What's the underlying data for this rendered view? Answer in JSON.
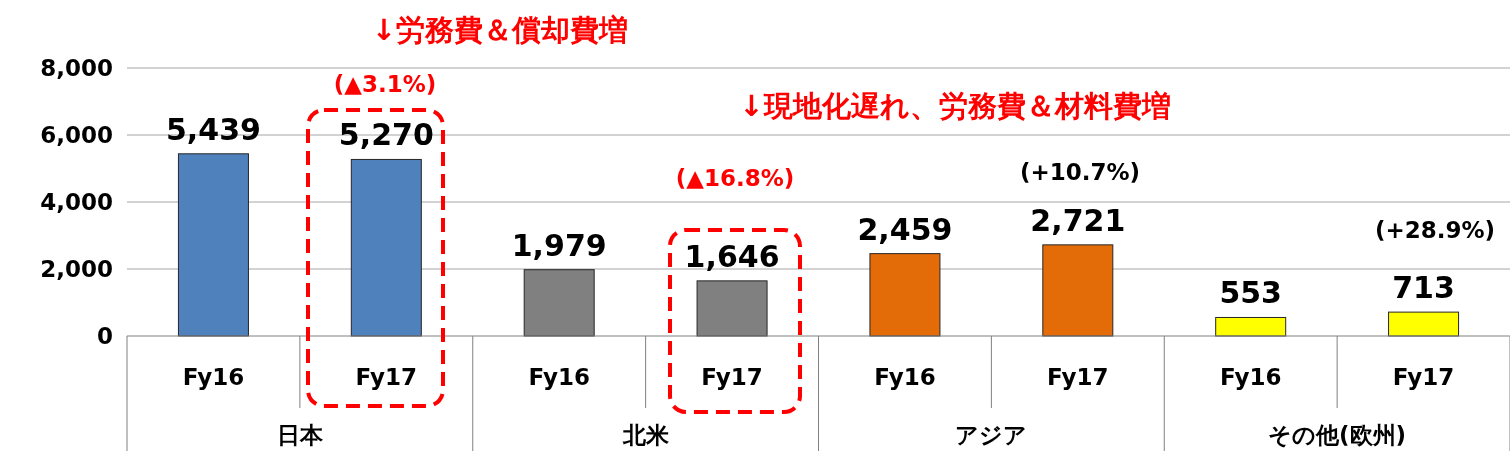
{
  "chart_data": {
    "type": "bar",
    "categories": [
      "Fy16",
      "Fy17",
      "Fy16",
      "Fy17",
      "Fy16",
      "Fy17",
      "Fy16",
      "Fy17"
    ],
    "values": [
      5439,
      5270,
      1979,
      1646,
      2459,
      2721,
      553,
      713
    ],
    "colors": [
      "#4f81bd",
      "#4f81bd",
      "#808080",
      "#808080",
      "#e36c09",
      "#e36c09",
      "#ffff00",
      "#ffff00"
    ],
    "ylim": [
      0,
      8000
    ],
    "yticks": [
      {
        "value": 0,
        "label": "0"
      },
      {
        "value": 2000,
        "label": "2,000"
      },
      {
        "value": 4000,
        "label": "4,000"
      },
      {
        "value": 6000,
        "label": "6,000"
      },
      {
        "value": 8000,
        "label": "8,000"
      }
    ],
    "value_labels": [
      "5,439",
      "5,270",
      "1,979",
      "1,646",
      "2,459",
      "2,721",
      "553",
      "713"
    ],
    "grid": "y",
    "annotations": [
      "↓労務費＆償却費増",
      "(▲3.1%)",
      "↓現地化遅れ、労務費＆材料費増",
      "(▲16.8%)",
      "(+10.7%)",
      "(+28.9%)",
      "日本",
      "北米",
      "アジア",
      "その他(欧州)"
    ]
  }
}
